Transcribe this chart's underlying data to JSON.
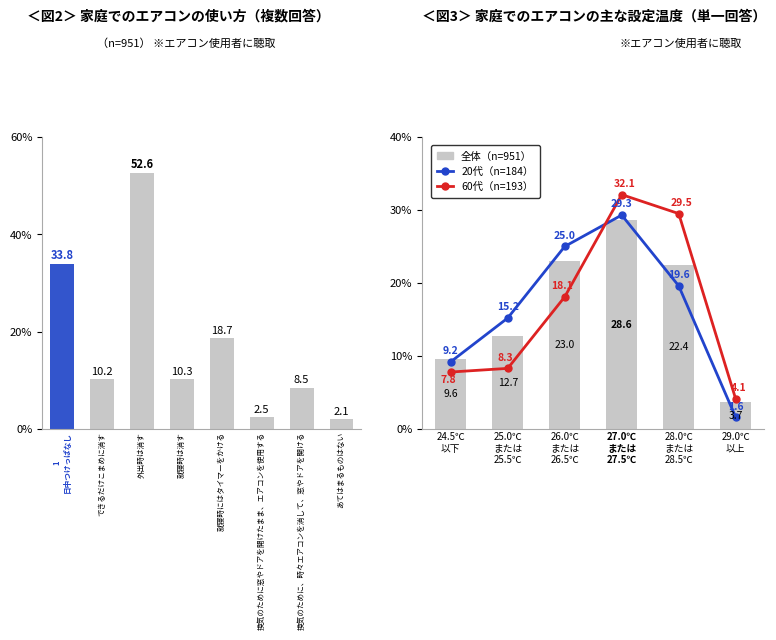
{
  "fig2_title": "＜図2＞ 家庭でのエアコンの使い方（複数回答）",
  "fig2_subtitle": "（n=951） ※エアコン使用者に聴取",
  "fig2_values": [
    33.8,
    10.2,
    52.6,
    10.3,
    18.7,
    2.5,
    8.5,
    2.1
  ],
  "fig2_colors": [
    "#3355cc",
    "#c8c8c8",
    "#c8c8c8",
    "#c8c8c8",
    "#c8c8c8",
    "#c8c8c8",
    "#c8c8c8",
    "#c8c8c8"
  ],
  "fig2_labels": [
    "1\n日中つけっぱなし",
    "できるだけこまめに消す",
    "外出時は消す",
    "就寝時は消す",
    "就寝時にはタイマーをかける",
    "換気のために窓やドアを開けたまま、エアコンを使用する",
    "換気のために、時々エアコンを消して、窓やドアを開ける",
    "あてはまるものはない"
  ],
  "fig2_ylim": [
    0,
    60
  ],
  "fig2_yticks": [
    0,
    20,
    40,
    60
  ],
  "fig3_title": "＜図3＞ 家庭でのエアコンの主な設定温度（単一回答）",
  "fig3_subtitle": "※エアコン使用者に聴取",
  "fig3_categories": [
    "24.5℃\n以下",
    "25.0℃\nまたは\n25.5℃",
    "26.0℃\nまたは\n26.5℃",
    "27.0℃\nまたは\n27.5℃",
    "28.0℃\nまたは\n28.5℃",
    "29.0℃\n以上"
  ],
  "fig3_zentai": [
    9.6,
    12.7,
    23.0,
    28.6,
    22.4,
    3.7
  ],
  "fig3_20dai": [
    9.2,
    15.2,
    25.0,
    29.3,
    19.6,
    1.6
  ],
  "fig3_60dai": [
    7.8,
    8.3,
    18.1,
    32.1,
    29.5,
    4.1
  ],
  "fig3_ylim": [
    0,
    40
  ],
  "fig3_yticks": [
    0,
    10,
    20,
    30,
    40
  ],
  "bar_color": "#c8c8c8",
  "line_20_color": "#2244cc",
  "line_60_color": "#dd2222",
  "legend_labels": [
    "全体（n=951）",
    "20代（n=184）",
    "60代（n=193）"
  ]
}
